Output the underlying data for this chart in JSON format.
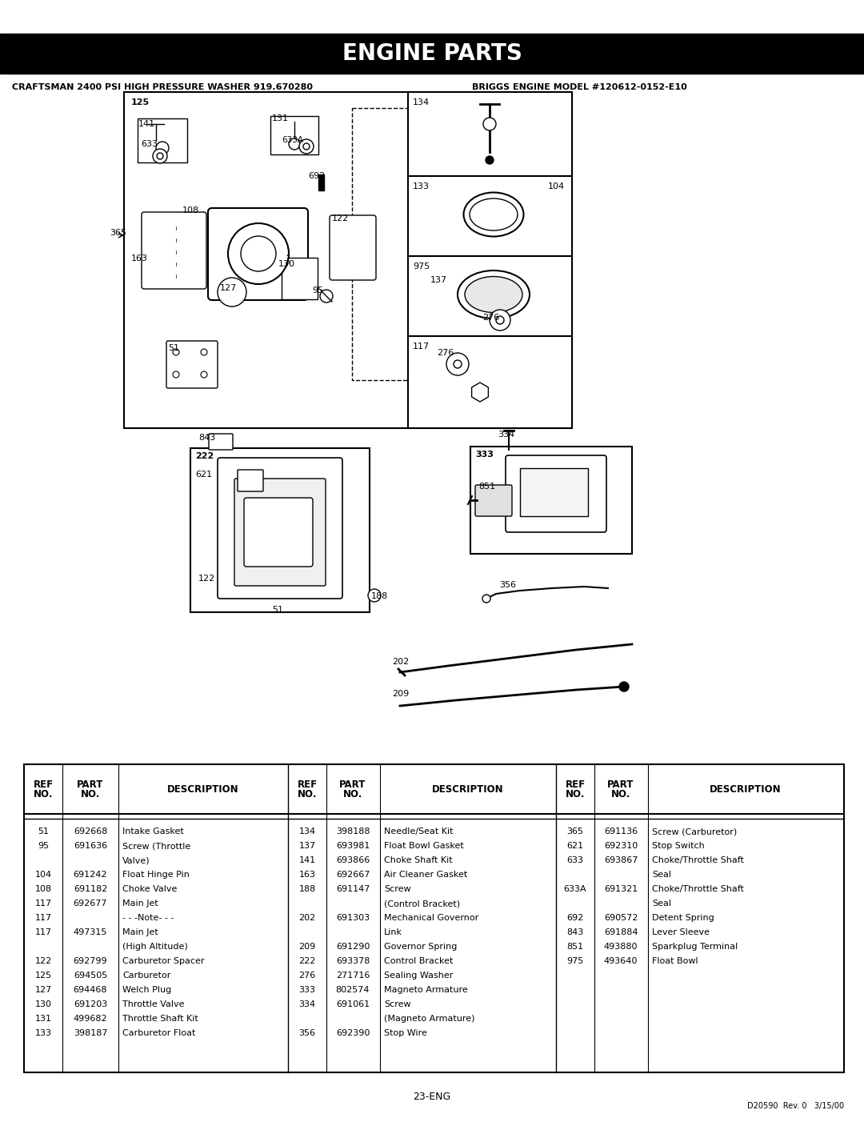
{
  "title": "ENGINE PARTS",
  "subtitle_left": "CRAFTSMAN 2400 PSI HIGH PRESSURE WASHER 919.670280",
  "subtitle_right": "BRIGGS ENGINE MODEL #120612-0152-E10",
  "page_label": "23-ENG",
  "footer_right": "D20590  Rev. 0   3/15/00",
  "bg_color": "#ffffff",
  "table_col1": [
    [
      "51",
      "692668",
      "Intake Gasket",
      false
    ],
    [
      "95",
      "691636",
      "Screw (Throttle",
      false
    ],
    [
      "",
      "",
      "Valve)",
      false
    ],
    [
      "104",
      "691242",
      "Float Hinge Pin",
      false
    ],
    [
      "108",
      "691182",
      "Choke Valve",
      false
    ],
    [
      "117",
      "692677",
      "Main Jet",
      false
    ],
    [
      "117",
      "",
      "- - -Note- - -",
      false
    ],
    [
      "117",
      "497315",
      "Main Jet",
      false
    ],
    [
      "",
      "",
      "(High Altitude)",
      false
    ],
    [
      "122",
      "692799",
      "Carburetor Spacer",
      false
    ],
    [
      "125",
      "694505",
      "Carburetor",
      false
    ],
    [
      "127",
      "694468",
      "Welch Plug",
      false
    ],
    [
      "130",
      "691203",
      "Throttle Valve",
      false
    ],
    [
      "131",
      "499682",
      "Throttle Shaft Kit",
      false
    ],
    [
      "133",
      "398187",
      "Carburetor Float",
      false
    ]
  ],
  "table_col2": [
    [
      "134",
      "398188",
      "Needle/Seat Kit",
      false
    ],
    [
      "137",
      "693981",
      "Float Bowl Gasket",
      false
    ],
    [
      "141",
      "693866",
      "Choke Shaft Kit",
      false
    ],
    [
      "163",
      "692667",
      "Air Cleaner Gasket",
      false
    ],
    [
      "188",
      "691147",
      "Screw",
      false
    ],
    [
      "",
      "",
      "(Control Bracket)",
      false
    ],
    [
      "202",
      "691303",
      "Mechanical Governor",
      false
    ],
    [
      "",
      "",
      "Link",
      false
    ],
    [
      "209",
      "691290",
      "Governor Spring",
      false
    ],
    [
      "222",
      "693378",
      "Control Bracket",
      false
    ],
    [
      "276",
      "271716",
      "Sealing Washer",
      false
    ],
    [
      "333",
      "802574",
      "Magneto Armature",
      false
    ],
    [
      "334",
      "691061",
      "Screw",
      false
    ],
    [
      "",
      "",
      "(Magneto Armature)",
      false
    ],
    [
      "356",
      "692390",
      "Stop Wire",
      false
    ]
  ],
  "table_col3": [
    [
      "365",
      "691136",
      "Screw (Carburetor)",
      false
    ],
    [
      "621",
      "692310",
      "Stop Switch",
      false
    ],
    [
      "633",
      "693867",
      "Choke/Throttle Shaft",
      false
    ],
    [
      "",
      "",
      "Seal",
      false
    ],
    [
      "633A",
      "691321",
      "Choke/Throttle Shaft",
      false
    ],
    [
      "",
      "",
      "Seal",
      false
    ],
    [
      "692",
      "690572",
      "Detent Spring",
      false
    ],
    [
      "843",
      "691884",
      "Lever Sleeve",
      false
    ],
    [
      "851",
      "493880",
      "Sparkplug Terminal",
      false
    ],
    [
      "975",
      "493640",
      "Float Bowl",
      false
    ]
  ]
}
